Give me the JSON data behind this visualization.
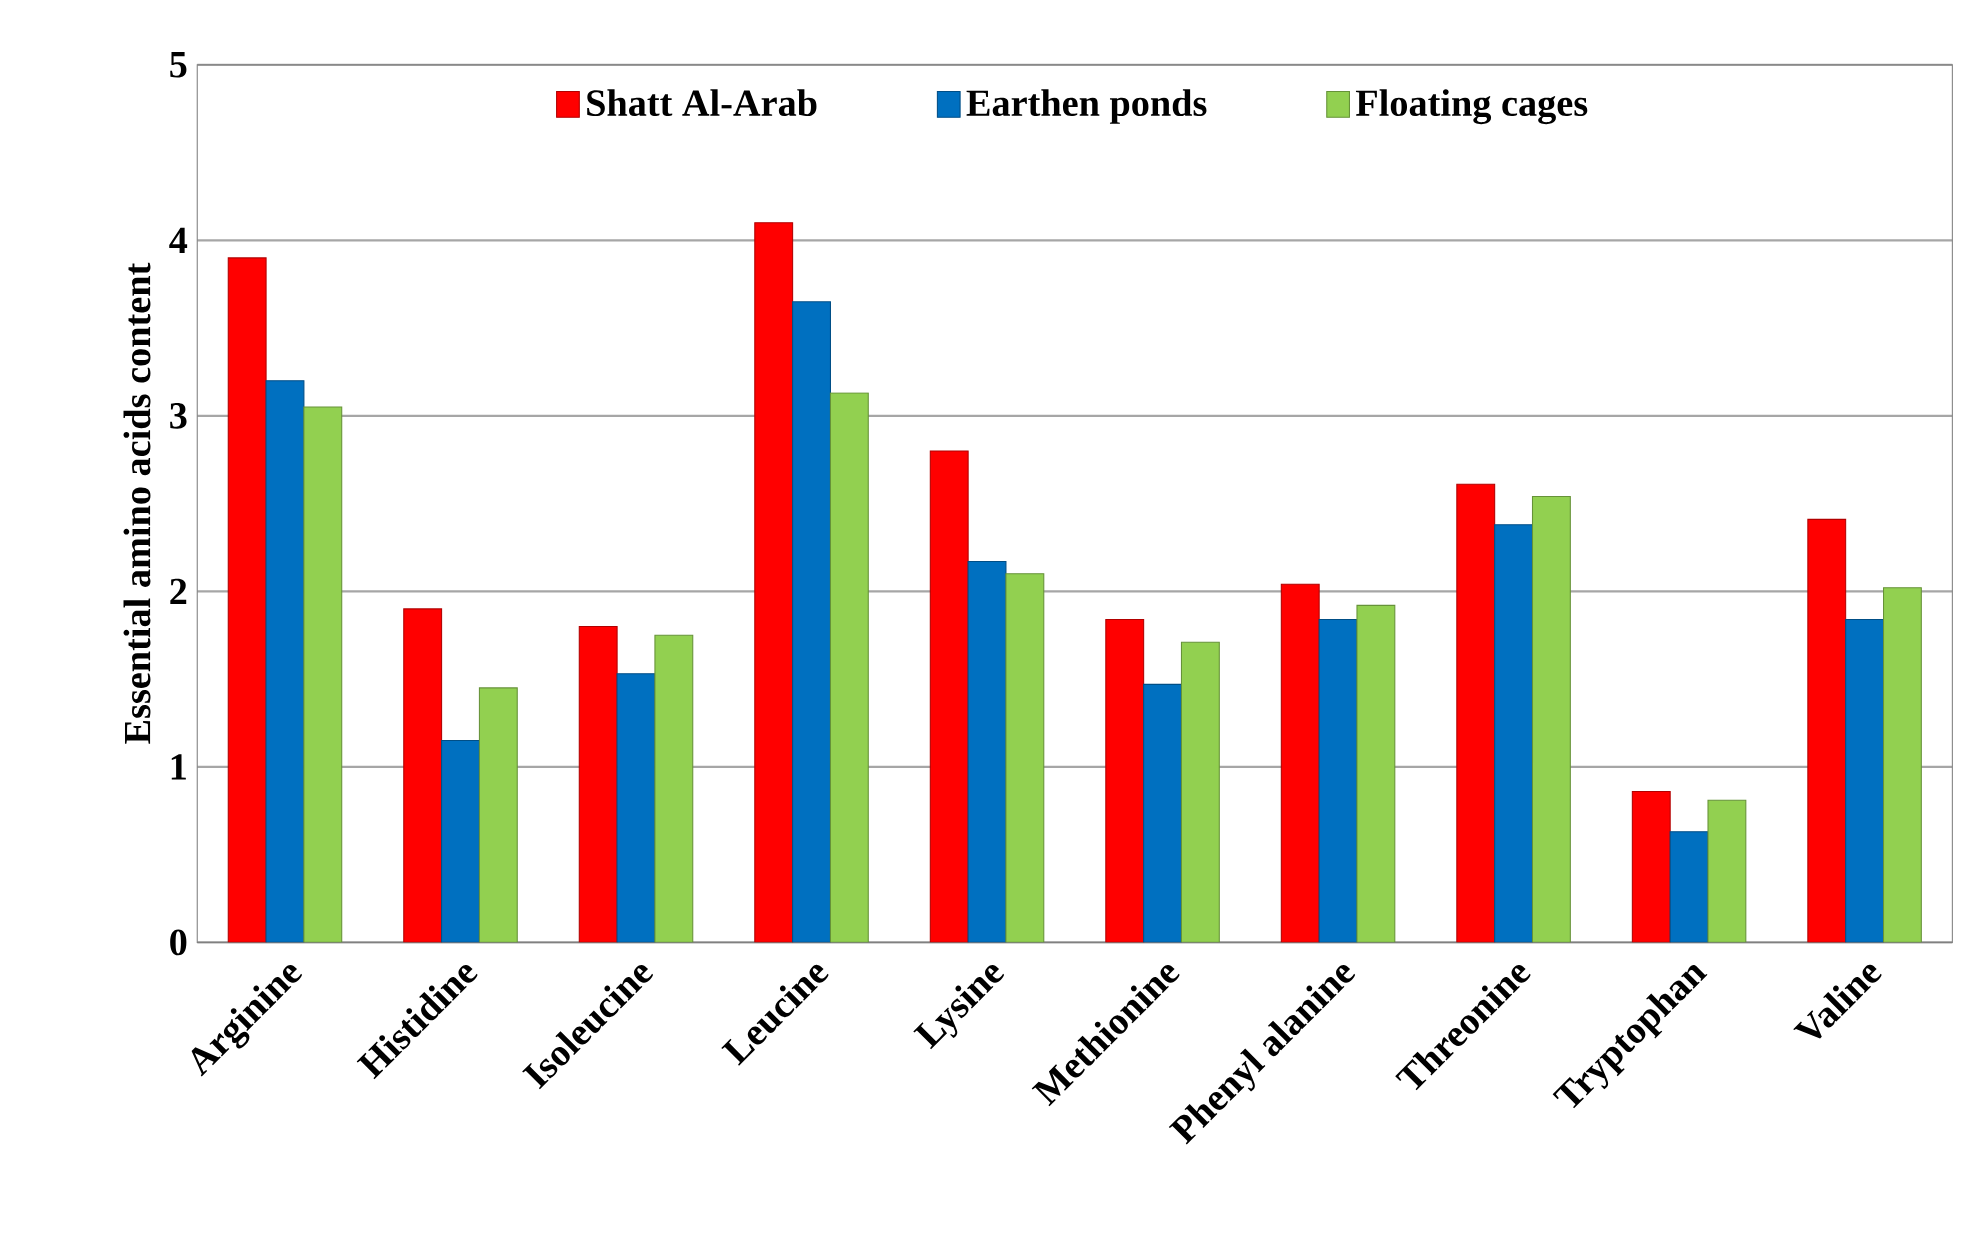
{
  "chart_data": {
    "type": "bar",
    "ylabel": "Essential amino acids content",
    "categories": [
      "Arginine",
      "Histidine",
      "Isoleucine",
      "Leucine",
      "Lysine",
      "Methionine",
      "Phenyl alanine",
      "Threonine",
      "Tryptophan",
      "Valine"
    ],
    "series": [
      {
        "name": "Shatt  Al-Arab",
        "color": "#ff0000",
        "values": [
          3.9,
          1.9,
          1.8,
          4.1,
          2.8,
          1.84,
          2.04,
          2.61,
          0.86,
          2.41
        ]
      },
      {
        "name": "Earthen ponds",
        "color": "#0070c0",
        "values": [
          3.2,
          1.15,
          1.53,
          3.65,
          2.17,
          1.47,
          1.84,
          2.38,
          0.63,
          1.84
        ]
      },
      {
        "name": "Floating cages",
        "color": "#92d050",
        "values": [
          3.05,
          1.45,
          1.75,
          3.13,
          2.1,
          1.71,
          1.92,
          2.54,
          0.81,
          2.02
        ]
      }
    ],
    "ylim": [
      0,
      5
    ],
    "yticks": [
      0,
      1,
      2,
      3,
      4,
      5
    ],
    "grid": "y",
    "legend": "top"
  }
}
